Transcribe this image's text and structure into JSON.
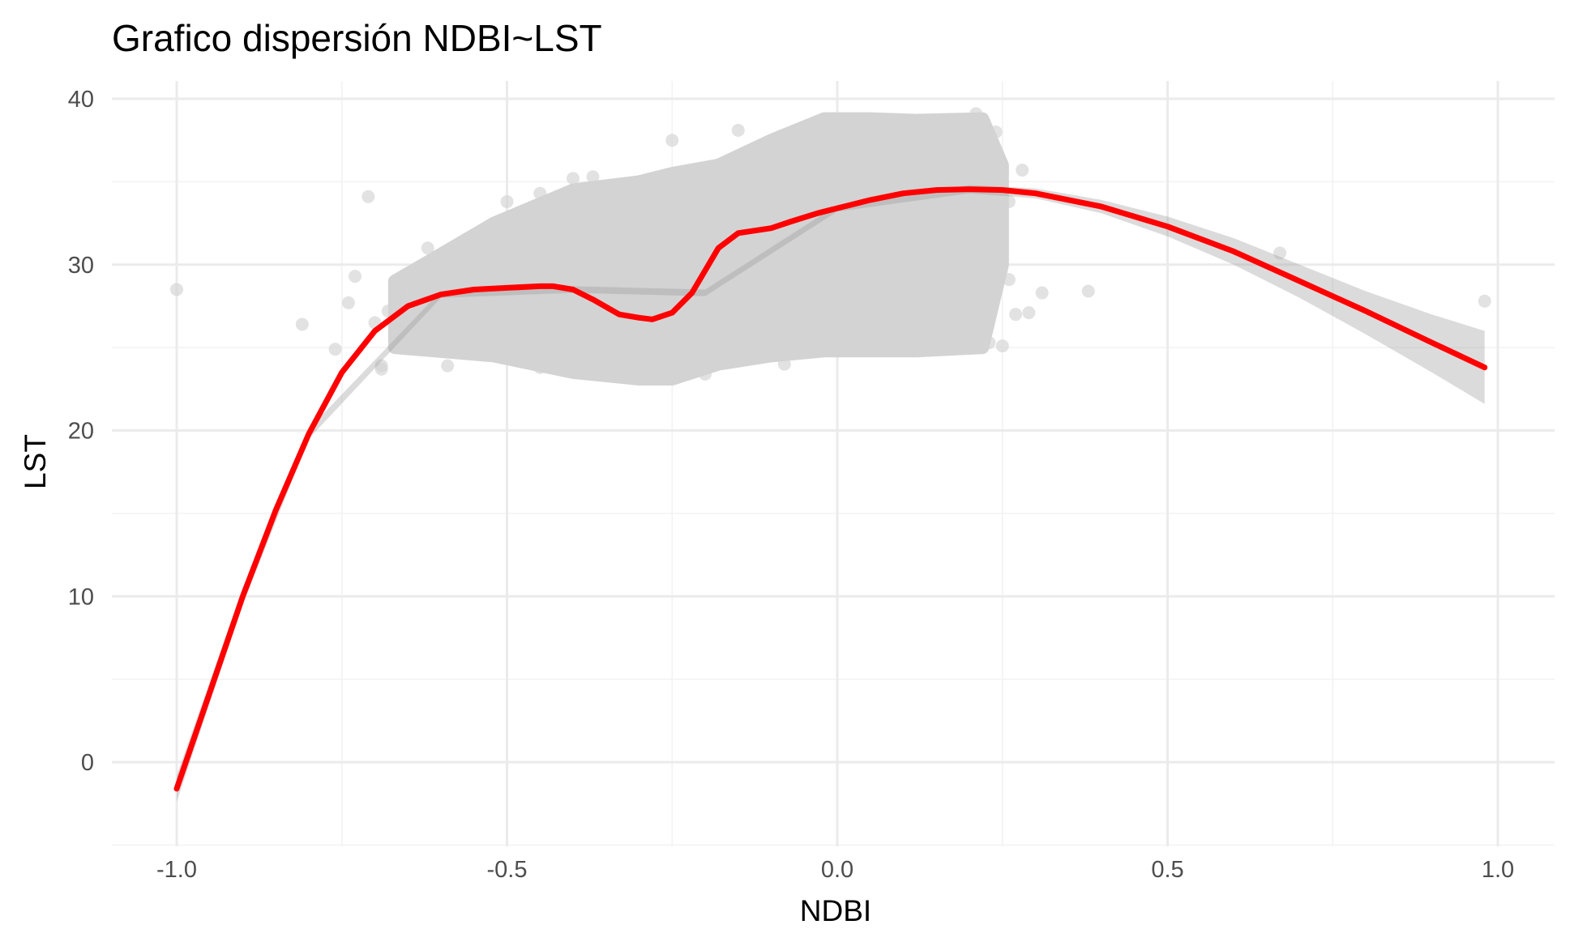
{
  "chart_data": {
    "type": "scatter",
    "title": "Grafico dispersión NDBI~LST",
    "xlabel": "NDBI",
    "ylabel": "LST",
    "xlim": [
      -1.0,
      1.0
    ],
    "ylim": [
      -4.5,
      40.5
    ],
    "x_ticks": [
      -1.0,
      -0.5,
      0.0,
      0.5,
      1.0
    ],
    "x_tick_labels": [
      "-1.0",
      "-0.5",
      "0.0",
      "0.5",
      "1.0"
    ],
    "y_ticks": [
      0,
      10,
      20,
      30,
      40
    ],
    "y_tick_labels": [
      "0",
      "10",
      "20",
      "30",
      "40"
    ],
    "grid": true,
    "legend": "none",
    "colors": {
      "points": "#d3d3d3",
      "smooth_line": "#ff0000",
      "confidence_band": "#999999"
    },
    "point_cloud_bounds": {
      "x": [
        -0.67,
        -0.52,
        -0.4,
        -0.3,
        -0.25,
        -0.18,
        -0.1,
        -0.02,
        0.05,
        0.12,
        0.22,
        0.25
      ],
      "upper": [
        29.0,
        32.5,
        34.5,
        35.0,
        35.5,
        36.0,
        37.5,
        38.8,
        38.8,
        38.7,
        38.8,
        36.0
      ],
      "lower": [
        25.0,
        24.5,
        23.5,
        23.1,
        23.1,
        24.0,
        24.5,
        24.8,
        24.8,
        24.8,
        25.0,
        30.0
      ]
    },
    "scatter_points": [
      {
        "x": -1.0,
        "y": 28.5
      },
      {
        "x": -0.81,
        "y": 26.4
      },
      {
        "x": -0.76,
        "y": 24.9
      },
      {
        "x": -0.74,
        "y": 27.7
      },
      {
        "x": -0.73,
        "y": 29.3
      },
      {
        "x": -0.71,
        "y": 34.1
      },
      {
        "x": -0.7,
        "y": 26.5
      },
      {
        "x": -0.69,
        "y": 23.7
      },
      {
        "x": -0.69,
        "y": 23.9
      },
      {
        "x": -0.68,
        "y": 27.2
      },
      {
        "x": -0.66,
        "y": 27.8
      },
      {
        "x": -0.65,
        "y": 28.0
      },
      {
        "x": -0.64,
        "y": 26.9
      },
      {
        "x": -0.63,
        "y": 29.3
      },
      {
        "x": -0.62,
        "y": 31.0
      },
      {
        "x": -0.61,
        "y": 28.7
      },
      {
        "x": -0.6,
        "y": 29.1
      },
      {
        "x": -0.63,
        "y": 24.9
      },
      {
        "x": -0.59,
        "y": 23.9
      },
      {
        "x": -0.62,
        "y": 26.0
      },
      {
        "x": -0.5,
        "y": 33.8
      },
      {
        "x": -0.45,
        "y": 34.3
      },
      {
        "x": -0.4,
        "y": 35.2
      },
      {
        "x": -0.37,
        "y": 35.3
      },
      {
        "x": -0.25,
        "y": 37.5
      },
      {
        "x": -0.15,
        "y": 38.1
      },
      {
        "x": -0.45,
        "y": 23.8
      },
      {
        "x": -0.2,
        "y": 23.4
      },
      {
        "x": -0.08,
        "y": 24.0
      },
      {
        "x": 0.15,
        "y": 25.0
      },
      {
        "x": 0.2,
        "y": 26.5
      },
      {
        "x": 0.22,
        "y": 29.0
      },
      {
        "x": 0.23,
        "y": 25.3
      },
      {
        "x": 0.24,
        "y": 28.5
      },
      {
        "x": 0.25,
        "y": 25.1
      },
      {
        "x": 0.26,
        "y": 29.1
      },
      {
        "x": 0.27,
        "y": 27.0
      },
      {
        "x": 0.29,
        "y": 27.1
      },
      {
        "x": 0.31,
        "y": 28.3
      },
      {
        "x": 0.28,
        "y": 35.7
      },
      {
        "x": 0.26,
        "y": 33.8
      },
      {
        "x": 0.23,
        "y": 32.0
      },
      {
        "x": 0.38,
        "y": 28.4
      },
      {
        "x": 0.67,
        "y": 30.7
      },
      {
        "x": 0.98,
        "y": 27.8
      },
      {
        "x": 0.21,
        "y": 39.1
      },
      {
        "x": 0.24,
        "y": 38.0
      },
      {
        "x": 0.18,
        "y": 30.0
      }
    ],
    "smooth_curve": {
      "x": [
        -1.0,
        -0.95,
        -0.9,
        -0.85,
        -0.8,
        -0.75,
        -0.7,
        -0.65,
        -0.6,
        -0.55,
        -0.5,
        -0.45,
        -0.43,
        -0.4,
        -0.37,
        -0.33,
        -0.3,
        -0.28,
        -0.25,
        -0.22,
        -0.18,
        -0.15,
        -0.1,
        -0.07,
        -0.03,
        0.0,
        0.05,
        0.1,
        0.15,
        0.2,
        0.25,
        0.3,
        0.4,
        0.5,
        0.6,
        0.7,
        0.8,
        0.9,
        0.98
      ],
      "y": [
        -1.6,
        4.2,
        10.0,
        15.2,
        19.8,
        23.5,
        26.0,
        27.5,
        28.2,
        28.5,
        28.6,
        28.7,
        28.7,
        28.5,
        27.9,
        27.0,
        26.8,
        26.7,
        27.1,
        28.3,
        31.0,
        31.9,
        32.2,
        32.6,
        33.1,
        33.4,
        33.9,
        34.3,
        34.5,
        34.55,
        34.5,
        34.3,
        33.5,
        32.3,
        30.8,
        29.0,
        27.2,
        25.3,
        23.8
      ]
    },
    "confidence_band": {
      "x": [
        -1.0,
        -0.9,
        -0.8,
        -0.6,
        -0.4,
        -0.2,
        0.0,
        0.2,
        0.3,
        0.4,
        0.5,
        0.6,
        0.7,
        0.8,
        0.9,
        0.98
      ],
      "lower": [
        -2.4,
        9.5,
        19.5,
        28.0,
        28.3,
        28.1,
        33.2,
        34.3,
        34.0,
        33.1,
        31.7,
        30.0,
        28.0,
        25.8,
        23.5,
        21.6
      ],
      "upper": [
        -0.8,
        10.5,
        20.1,
        28.4,
        28.7,
        28.5,
        33.6,
        34.8,
        34.6,
        33.9,
        32.9,
        31.6,
        30.0,
        28.4,
        27.0,
        26.0
      ]
    }
  }
}
